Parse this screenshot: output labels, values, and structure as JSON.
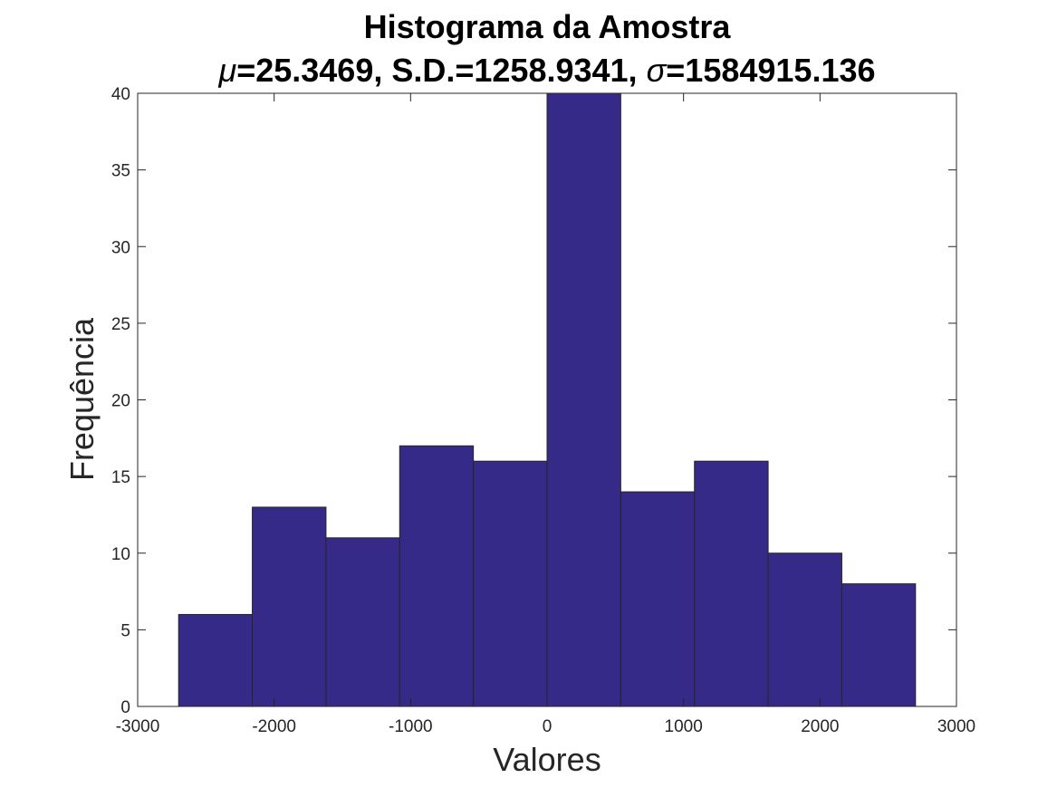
{
  "chart_data": {
    "type": "bar",
    "title": "Histograma da Amostra",
    "subtitle": {
      "mu_symbol": "μ",
      "mu_text": "=25.3469, S.D.=1258.9341, ",
      "sigma_symbol": "σ",
      "sigma_text": "=1584915.136"
    },
    "xlabel": "Valores",
    "ylabel": "Frequência",
    "xlim": [
      -3000,
      3000
    ],
    "ylim": [
      0,
      40
    ],
    "xticks": [
      -3000,
      -2000,
      -1000,
      0,
      1000,
      2000,
      3000
    ],
    "yticks": [
      0,
      5,
      10,
      15,
      20,
      25,
      30,
      35,
      40
    ],
    "bin_edges": [
      -2700,
      -2160,
      -1620,
      -1080,
      -540,
      0,
      540,
      1080,
      1620,
      2160,
      2700
    ],
    "counts": [
      6,
      13,
      11,
      17,
      16,
      40,
      14,
      16,
      10,
      8
    ],
    "bar_color": "#352a87",
    "bar_edge_color": "#262626",
    "grid": false
  }
}
